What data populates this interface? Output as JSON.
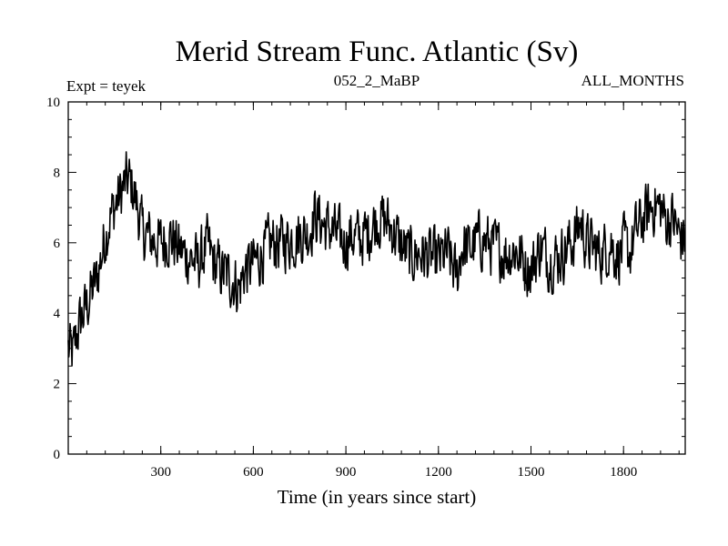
{
  "chart_data": {
    "type": "line",
    "title": "Merid Stream Func. Atlantic (Sv)",
    "subtitle_left": "Expt = teyek",
    "subtitle_center": "052_2_MaBP",
    "subtitle_right": "ALL_MONTHS",
    "xlabel": "Time (in years since start)",
    "ylabel": "",
    "xlim": [
      0,
      2000
    ],
    "ylim": [
      0,
      10
    ],
    "xticks": [
      300,
      600,
      900,
      1200,
      1500,
      1800
    ],
    "xtick_labels": [
      "300",
      "600",
      "900",
      "1200",
      "1500",
      "1800"
    ],
    "yticks": [
      0,
      2,
      4,
      6,
      8,
      10
    ],
    "ytick_labels": [
      "0",
      "2",
      "4",
      "6",
      "8",
      "10"
    ],
    "series": [
      {
        "name": "Merid Stream Func. Atlantic",
        "color": "#000000",
        "x": [
          0,
          15,
          30,
          45,
          60,
          75,
          90,
          105,
          120,
          135,
          150,
          165,
          180,
          195,
          210,
          225,
          240,
          270,
          300,
          330,
          360,
          390,
          420,
          450,
          480,
          510,
          540,
          555,
          570,
          600,
          630,
          660,
          690,
          720,
          750,
          780,
          800,
          830,
          860,
          890,
          920,
          950,
          980,
          1000,
          1030,
          1050,
          1080,
          1110,
          1140,
          1170,
          1200,
          1230,
          1260,
          1275,
          1300,
          1330,
          1360,
          1390,
          1420,
          1450,
          1480,
          1500,
          1530,
          1560,
          1590,
          1620,
          1640,
          1660,
          1680,
          1700,
          1720,
          1740,
          1760,
          1780,
          1800,
          1820,
          1840,
          1860,
          1880,
          1900,
          1920,
          1940,
          1960,
          1980,
          2000
        ],
        "values": [
          3.0,
          2.8,
          3.5,
          3.9,
          4.2,
          4.6,
          4.9,
          5.5,
          6.2,
          6.7,
          7.0,
          7.3,
          7.6,
          7.8,
          7.5,
          7.0,
          6.3,
          6.1,
          6.0,
          6.2,
          5.8,
          5.6,
          5.4,
          5.9,
          5.3,
          5.1,
          4.9,
          4.7,
          5.2,
          5.4,
          5.7,
          6.0,
          6.0,
          6.1,
          6.2,
          6.3,
          6.8,
          6.5,
          6.3,
          6.0,
          6.2,
          6.1,
          6.4,
          6.7,
          6.6,
          6.4,
          5.9,
          5.6,
          5.7,
          5.6,
          5.5,
          5.7,
          5.0,
          5.9,
          5.8,
          6.1,
          6.0,
          5.8,
          5.7,
          5.8,
          5.4,
          5.2,
          5.9,
          5.5,
          5.6,
          5.9,
          6.1,
          6.6,
          6.0,
          5.9,
          5.7,
          5.8,
          6.0,
          5.6,
          5.9,
          5.7,
          6.3,
          6.6,
          6.9,
          7.1,
          7.0,
          6.6,
          6.7,
          6.2,
          6.1
        ]
      }
    ],
    "grid": false
  }
}
